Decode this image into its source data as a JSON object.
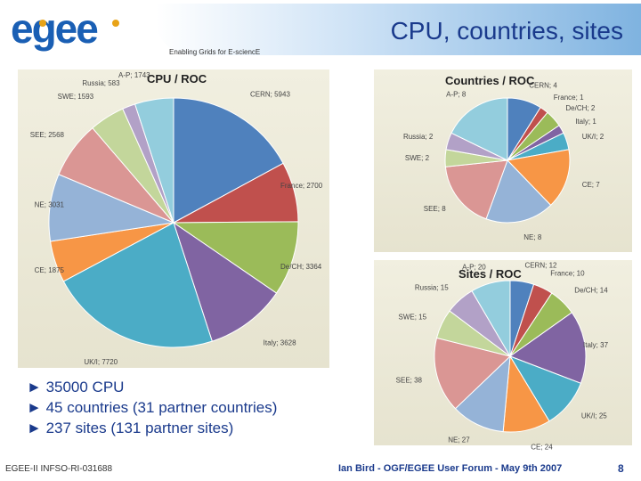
{
  "header": {
    "title": "CPU, countries, sites",
    "tagline": "Enabling Grids for E-sciencE",
    "logo_text": "egee"
  },
  "stats": [
    "35000 CPU",
    "45 countries (31 partner countries)",
    "237 sites (131 partner sites)"
  ],
  "footer": {
    "doc_id": "EGEE-II INFSO-RI-031688",
    "author": "Ian Bird - OGF/EGEE User Forum - May 9th 2007",
    "page": "8"
  },
  "chart_data": [
    {
      "type": "pie",
      "title": "CPU / ROC",
      "labels": [
        "CERN",
        "France",
        "De/CH",
        "Italy",
        "UK/I",
        "CE",
        "NE",
        "SEE",
        "SWE",
        "Russia",
        "A-P"
      ],
      "values": [
        5943,
        2700,
        3364,
        3628,
        7720,
        1875,
        3031,
        2568,
        1593,
        583,
        1743
      ],
      "label_texts": [
        "CERN; 5943",
        "France; 2700",
        "De/CH; 3364",
        "Italy; 3628",
        "UK/I; 7720",
        "CE; 1875",
        "NE; 3031",
        "SEE; 2568",
        "SWE; 1593",
        "Russia; 583",
        "A-P; 1743"
      ],
      "colors": [
        "#4f81bd",
        "#c0504d",
        "#9bbb59",
        "#8064a2",
        "#4bacc6",
        "#f79646",
        "#95b3d7",
        "#da9694",
        "#c3d69b",
        "#b2a1c7",
        "#93cddd"
      ]
    },
    {
      "type": "pie",
      "title": "Countries / ROC",
      "labels": [
        "CERN",
        "France",
        "De/CH",
        "Italy",
        "UK/I",
        "CE",
        "NE",
        "SEE",
        "SWE",
        "Russia",
        "A-P"
      ],
      "values": [
        4,
        1,
        2,
        1,
        2,
        7,
        8,
        8,
        2,
        2,
        8
      ],
      "label_texts": [
        "CERN; 4",
        "France; 1",
        "De/CH; 2",
        "Italy; 1",
        "UK/I; 2",
        "CE; 7",
        "NE; 8",
        "SEE; 8",
        "SWE; 2",
        "Russia; 2",
        "A-P; 8"
      ],
      "colors": [
        "#4f81bd",
        "#c0504d",
        "#9bbb59",
        "#8064a2",
        "#4bacc6",
        "#f79646",
        "#95b3d7",
        "#da9694",
        "#c3d69b",
        "#b2a1c7",
        "#93cddd"
      ]
    },
    {
      "type": "pie",
      "title": "Sites / ROC",
      "labels": [
        "CERN",
        "France",
        "De/CH",
        "Italy",
        "UK/I",
        "CE",
        "NE",
        "SEE",
        "SWE",
        "Russia",
        "A-P"
      ],
      "values": [
        12,
        10,
        14,
        37,
        25,
        24,
        27,
        38,
        15,
        15,
        20
      ],
      "label_texts": [
        "CERN; 12",
        "France; 10",
        "De/CH; 14",
        "Italy; 37",
        "UK/I; 25",
        "CE; 24",
        "NE; 27",
        "SEE; 38",
        "SWE; 15",
        "Russia; 15",
        "A-P; 20"
      ],
      "colors": [
        "#4f81bd",
        "#c0504d",
        "#9bbb59",
        "#8064a2",
        "#4bacc6",
        "#f79646",
        "#95b3d7",
        "#da9694",
        "#c3d69b",
        "#b2a1c7",
        "#93cddd"
      ]
    }
  ]
}
